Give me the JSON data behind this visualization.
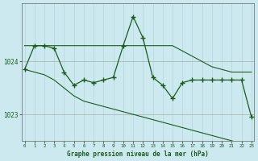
{
  "background_color": "#cce9f0",
  "grid_color_v": "#b5d5de",
  "grid_color_h": "#aaaaaa",
  "line_color": "#1a5c1a",
  "hours": [
    0,
    1,
    2,
    3,
    4,
    5,
    6,
    7,
    8,
    9,
    10,
    11,
    12,
    13,
    14,
    15,
    16,
    17,
    18,
    19,
    20,
    21,
    22,
    23
  ],
  "main_values": [
    1023.85,
    1024.3,
    1024.3,
    1024.25,
    1023.8,
    1023.55,
    1023.65,
    1023.6,
    1023.65,
    1023.7,
    1024.3,
    1024.85,
    1024.45,
    1023.7,
    1023.55,
    1023.3,
    1023.6,
    1023.65,
    1023.65,
    1023.65,
    1023.65,
    1023.65,
    1023.65,
    1022.95
  ],
  "upper_line": [
    1024.3,
    1024.3,
    1024.3,
    1024.3,
    1024.3,
    1024.3,
    1024.3,
    1024.3,
    1024.3,
    1024.3,
    1024.3,
    1024.3,
    1024.3,
    1024.3,
    1024.3,
    1024.3,
    1024.2,
    1024.1,
    1024.0,
    1023.9,
    1023.85,
    1023.8,
    1023.8,
    1023.8
  ],
  "lower_line": [
    1023.85,
    1023.8,
    1023.75,
    1023.65,
    1023.5,
    1023.35,
    1023.25,
    1023.2,
    1023.15,
    1023.1,
    1023.05,
    1023.0,
    1022.95,
    1022.9,
    1022.85,
    1022.8,
    1022.75,
    1022.7,
    1022.65,
    1022.6,
    1022.55,
    1022.5,
    1022.45,
    1022.4
  ],
  "ylim": [
    1022.5,
    1025.1
  ],
  "yticks": [
    1023,
    1024
  ],
  "xlabel": "Graphe pression niveau de la mer (hPa)",
  "text_color": "#1a5c1a"
}
